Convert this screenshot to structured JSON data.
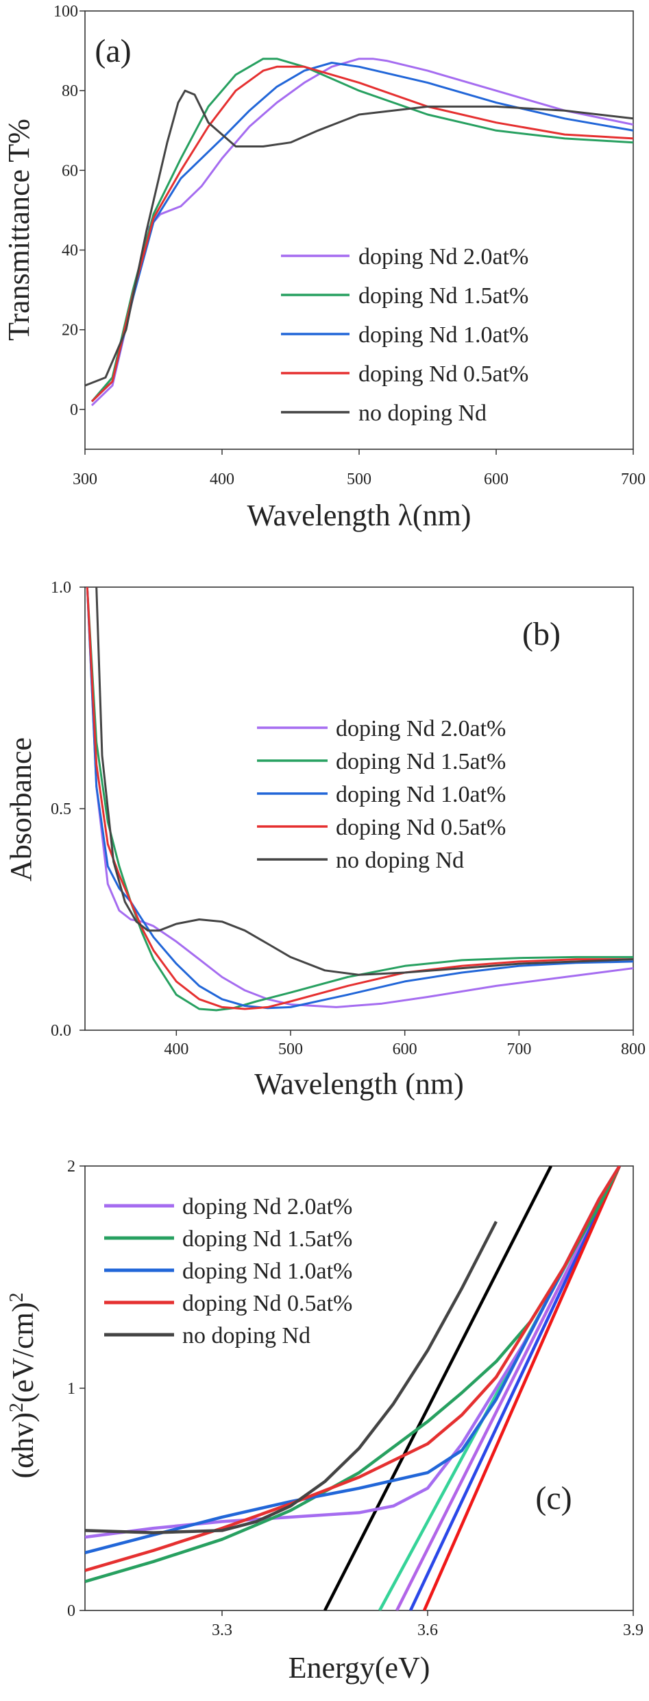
{
  "chart_data": [
    {
      "type": "line",
      "panel_label": "(a)",
      "xlabel": "Wavelength λ(nm)",
      "ylabel": "Transmittance T%",
      "xlim": [
        300,
        700
      ],
      "ylim": [
        -10,
        100
      ],
      "xticks": [
        300,
        400,
        500,
        600,
        700
      ],
      "yticks": [
        0,
        20,
        40,
        60,
        80,
        100
      ],
      "legend_position": "center-right",
      "series": [
        {
          "name": "doping Nd 2.0at%",
          "color": "#A56CF0",
          "x": [
            305,
            320,
            335,
            345,
            355,
            370,
            385,
            400,
            420,
            440,
            460,
            480,
            500,
            510,
            520,
            550,
            600,
            650,
            700
          ],
          "y": [
            1,
            6,
            28,
            45,
            49,
            51,
            56,
            63,
            71,
            77,
            82,
            86,
            88,
            88,
            87.5,
            85,
            80,
            75,
            71.5
          ]
        },
        {
          "name": "doping Nd 1.5at%",
          "color": "#27A060",
          "x": [
            305,
            320,
            335,
            350,
            370,
            390,
            410,
            430,
            440,
            460,
            500,
            550,
            600,
            650,
            700
          ],
          "y": [
            2,
            8,
            30,
            49,
            63,
            76,
            84,
            88,
            88,
            86,
            80,
            74,
            70,
            68,
            67
          ]
        },
        {
          "name": "doping Nd 1.0at%",
          "color": "#2166D8",
          "x": [
            305,
            320,
            335,
            350,
            370,
            400,
            420,
            440,
            460,
            480,
            500,
            550,
            600,
            650,
            700
          ],
          "y": [
            2,
            7,
            28,
            47,
            58,
            68,
            75,
            81,
            85,
            87,
            86,
            82,
            77,
            73,
            70
          ]
        },
        {
          "name": "doping Nd 0.5at%",
          "color": "#E53030",
          "x": [
            305,
            320,
            335,
            350,
            370,
            390,
            410,
            430,
            440,
            460,
            500,
            550,
            600,
            650,
            700
          ],
          "y": [
            2,
            7,
            29,
            48,
            60,
            71,
            80,
            85,
            86,
            86,
            82,
            76,
            72,
            69,
            68
          ]
        },
        {
          "name": "no doping Nd",
          "color": "#444444",
          "x": [
            300,
            315,
            330,
            345,
            360,
            368,
            373,
            380,
            390,
            410,
            430,
            450,
            470,
            500,
            550,
            600,
            650,
            700
          ],
          "y": [
            6,
            8,
            20,
            45,
            67,
            77,
            80,
            79,
            72,
            66,
            66,
            67,
            70,
            74,
            76,
            76,
            75,
            73
          ]
        }
      ]
    },
    {
      "type": "line",
      "panel_label": "(b)",
      "xlabel": "Wavelength (nm)",
      "ylabel": "Absorbance",
      "xlim": [
        320,
        800
      ],
      "ylim": [
        0,
        1.0
      ],
      "xticks": [
        400,
        500,
        600,
        700,
        800
      ],
      "yticks": [
        0.0,
        0.5,
        1.0
      ],
      "legend_position": "center-right",
      "series": [
        {
          "name": "doping Nd 2.0at%",
          "color": "#A56CF0",
          "x": [
            322,
            330,
            340,
            350,
            360,
            370,
            380,
            400,
            420,
            440,
            460,
            480,
            500,
            540,
            580,
            620,
            680,
            740,
            800
          ],
          "y": [
            1.0,
            0.55,
            0.33,
            0.27,
            0.25,
            0.245,
            0.235,
            0.2,
            0.16,
            0.12,
            0.09,
            0.07,
            0.058,
            0.052,
            0.06,
            0.075,
            0.1,
            0.12,
            0.14
          ]
        },
        {
          "name": "doping Nd 1.5at%",
          "color": "#27A060",
          "x": [
            322,
            330,
            340,
            350,
            360,
            370,
            380,
            400,
            420,
            435,
            450,
            470,
            500,
            550,
            600,
            650,
            700,
            750,
            800
          ],
          "y": [
            1.0,
            0.65,
            0.47,
            0.37,
            0.29,
            0.22,
            0.16,
            0.08,
            0.048,
            0.045,
            0.05,
            0.065,
            0.085,
            0.12,
            0.145,
            0.158,
            0.163,
            0.165,
            0.165
          ]
        },
        {
          "name": "doping Nd 1.0at%",
          "color": "#2166D8",
          "x": [
            322,
            330,
            340,
            350,
            360,
            370,
            380,
            400,
            420,
            440,
            460,
            480,
            500,
            550,
            600,
            650,
            700,
            750,
            800
          ],
          "y": [
            1.0,
            0.55,
            0.37,
            0.32,
            0.29,
            0.25,
            0.21,
            0.15,
            0.1,
            0.07,
            0.055,
            0.05,
            0.052,
            0.08,
            0.11,
            0.13,
            0.145,
            0.152,
            0.155
          ]
        },
        {
          "name": "doping Nd 0.5at%",
          "color": "#E53030",
          "x": [
            322,
            330,
            340,
            350,
            360,
            370,
            380,
            400,
            420,
            440,
            460,
            480,
            500,
            550,
            600,
            650,
            700,
            750,
            800
          ],
          "y": [
            1.0,
            0.6,
            0.42,
            0.35,
            0.29,
            0.23,
            0.18,
            0.11,
            0.07,
            0.052,
            0.048,
            0.052,
            0.065,
            0.1,
            0.13,
            0.145,
            0.155,
            0.16,
            0.16
          ]
        },
        {
          "name": "no doping Nd",
          "color": "#444444",
          "x": [
            330,
            335,
            345,
            355,
            365,
            375,
            385,
            400,
            420,
            440,
            460,
            480,
            500,
            530,
            560,
            600,
            650,
            700,
            750,
            800
          ],
          "y": [
            1.0,
            0.62,
            0.38,
            0.29,
            0.245,
            0.225,
            0.225,
            0.24,
            0.25,
            0.245,
            0.225,
            0.195,
            0.165,
            0.135,
            0.125,
            0.13,
            0.14,
            0.15,
            0.155,
            0.16
          ]
        }
      ]
    },
    {
      "type": "line",
      "panel_label": "(c)",
      "xlabel": "Energy(eV)",
      "ylabel": "(αhν)²(eV/cm)²",
      "ylabel_parts": [
        "(αhv)",
        "2",
        "(eV/cm)",
        "2"
      ],
      "xlim": [
        3.1,
        3.9
      ],
      "ylim": [
        0,
        2
      ],
      "xticks": [
        3.3,
        3.6,
        3.9
      ],
      "yticks": [
        0,
        1,
        2
      ],
      "legend_position": "top-left",
      "series": [
        {
          "name": "doping Nd 2.0at%",
          "color": "#A56CF0",
          "x": [
            3.1,
            3.2,
            3.3,
            3.4,
            3.5,
            3.55,
            3.6,
            3.65,
            3.7,
            3.75,
            3.8,
            3.85,
            3.88
          ],
          "y": [
            0.33,
            0.37,
            0.4,
            0.42,
            0.44,
            0.47,
            0.55,
            0.75,
            1.0,
            1.25,
            1.55,
            1.85,
            2.0
          ]
        },
        {
          "name": "doping Nd 1.5at%",
          "color": "#27A060",
          "x": [
            3.1,
            3.2,
            3.3,
            3.4,
            3.5,
            3.6,
            3.65,
            3.7,
            3.75,
            3.8,
            3.85,
            3.88
          ],
          "y": [
            0.13,
            0.22,
            0.32,
            0.45,
            0.62,
            0.85,
            0.98,
            1.12,
            1.3,
            1.55,
            1.82,
            2.0
          ]
        },
        {
          "name": "doping Nd 1.0at%",
          "color": "#2166D8",
          "x": [
            3.1,
            3.2,
            3.3,
            3.4,
            3.5,
            3.6,
            3.65,
            3.7,
            3.75,
            3.8,
            3.85,
            3.88
          ],
          "y": [
            0.26,
            0.34,
            0.42,
            0.49,
            0.55,
            0.62,
            0.72,
            0.95,
            1.25,
            1.55,
            1.85,
            2.0
          ]
        },
        {
          "name": "doping Nd 0.5at%",
          "color": "#E53030",
          "x": [
            3.1,
            3.2,
            3.3,
            3.4,
            3.5,
            3.6,
            3.65,
            3.7,
            3.75,
            3.8,
            3.85,
            3.88
          ],
          "y": [
            0.18,
            0.27,
            0.37,
            0.48,
            0.6,
            0.75,
            0.88,
            1.05,
            1.3,
            1.55,
            1.85,
            2.0
          ]
        },
        {
          "name": "no doping Nd",
          "color": "#444444",
          "x": [
            3.1,
            3.2,
            3.3,
            3.35,
            3.4,
            3.45,
            3.5,
            3.55,
            3.6,
            3.65,
            3.7
          ],
          "y": [
            0.36,
            0.35,
            0.36,
            0.4,
            0.47,
            0.58,
            0.73,
            0.93,
            1.17,
            1.45,
            1.75
          ]
        }
      ],
      "fit_lines": [
        {
          "color": "#000000",
          "x": [
            3.45,
            3.78
          ],
          "y": [
            0,
            2.0
          ]
        },
        {
          "color": "#35D398",
          "x": [
            3.53,
            3.88
          ],
          "y": [
            0,
            2.0
          ]
        },
        {
          "color": "#B265E8",
          "x": [
            3.555,
            3.88
          ],
          "y": [
            0,
            2.0
          ]
        },
        {
          "color": "#2A48E8",
          "x": [
            3.575,
            3.88
          ],
          "y": [
            0,
            2.0
          ]
        },
        {
          "color": "#F01818",
          "x": [
            3.595,
            3.88
          ],
          "y": [
            0,
            2.0
          ]
        }
      ]
    }
  ]
}
